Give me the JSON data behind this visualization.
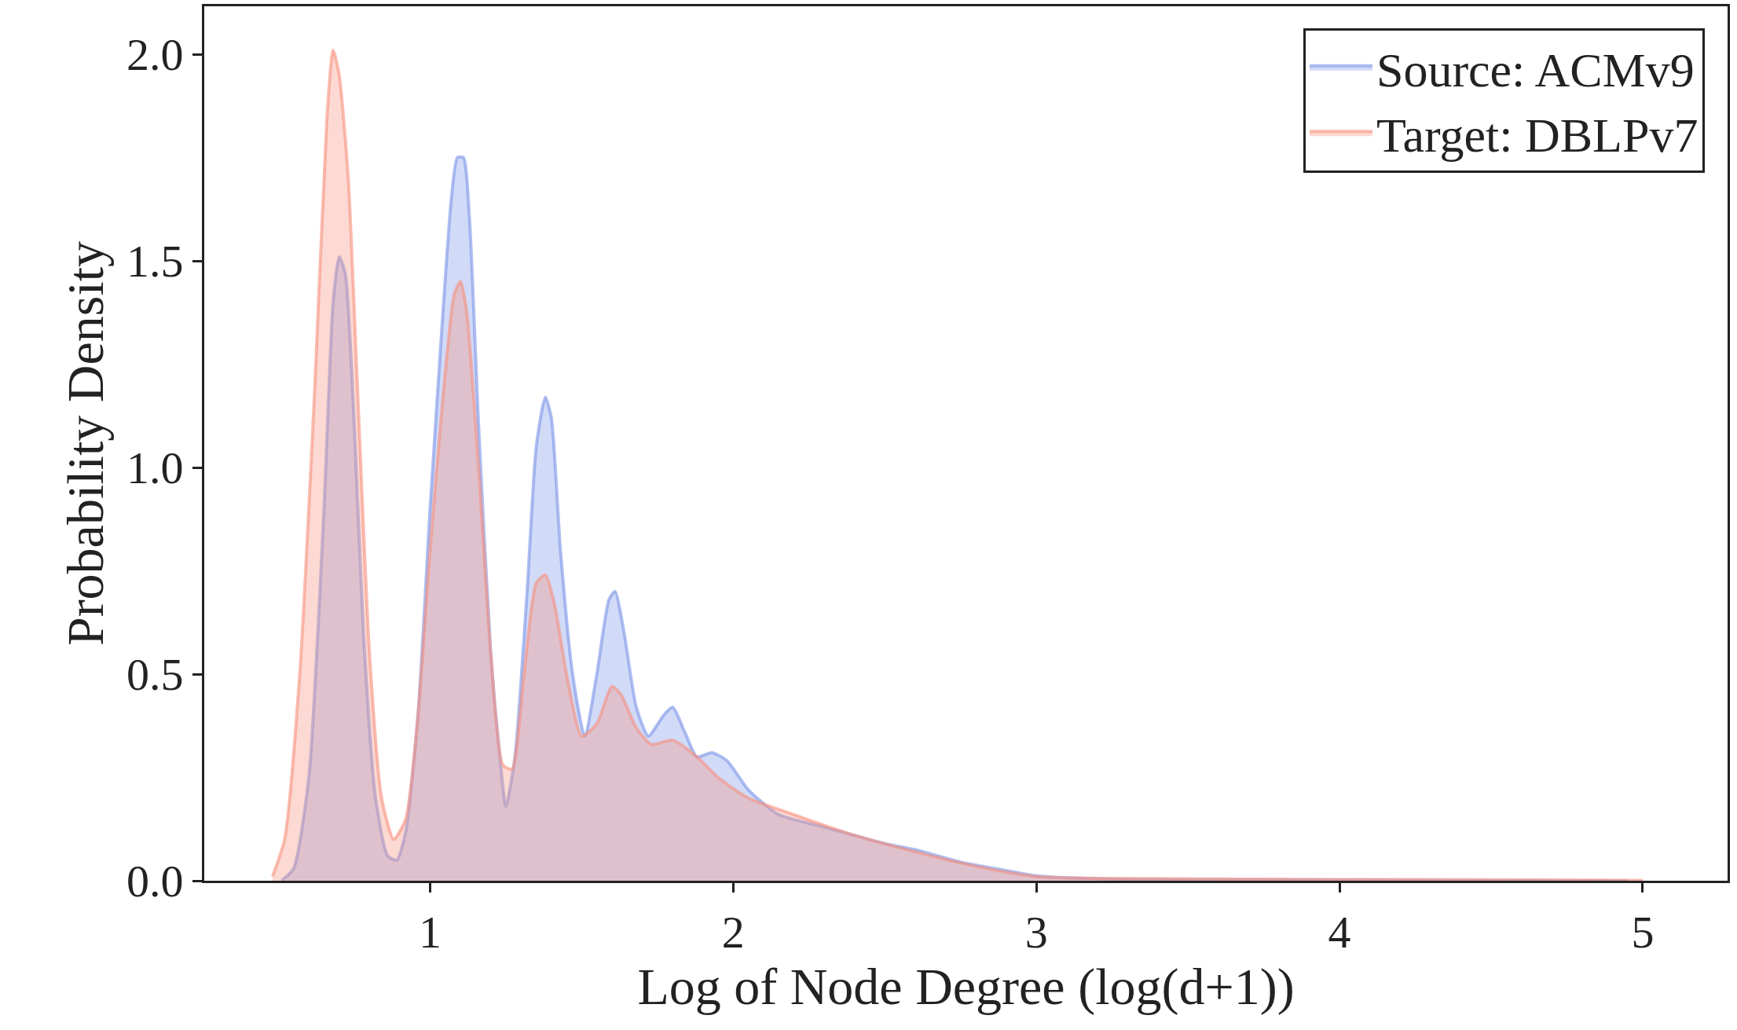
{
  "chart_data": {
    "type": "area",
    "xlabel": "Log of Node Degree (log(d+1))",
    "ylabel": "Probability Density",
    "xlim": [
      0.255,
      5.28
    ],
    "ylim": [
      0,
      2.116
    ],
    "xticks": [
      1,
      2,
      3,
      4,
      5
    ],
    "yticks": [
      {
        "value": 0,
        "label": "0.0"
      },
      0.5,
      {
        "value": 1,
        "label": "1.0"
      },
      1.5,
      {
        "value": 2,
        "label": "2.0"
      }
    ],
    "legend": "top right",
    "series": [
      {
        "name": "Source: ACMv9",
        "color": "#7b95e8",
        "x": [
          0.51,
          0.55,
          0.6,
          0.65,
          0.68,
          0.7,
          0.72,
          0.75,
          0.78,
          0.82,
          0.86,
          0.89,
          0.92,
          0.96,
          1.0,
          1.04,
          1.07,
          1.09,
          1.11,
          1.13,
          1.16,
          1.2,
          1.23,
          1.25,
          1.28,
          1.32,
          1.35,
          1.38,
          1.4,
          1.43,
          1.47,
          1.51,
          1.55,
          1.59,
          1.61,
          1.64,
          1.68,
          1.72,
          1.77,
          1.8,
          1.84,
          1.88,
          1.93,
          1.98,
          2.05,
          2.15,
          2.3,
          2.5,
          2.6,
          2.75,
          2.9,
          3.0,
          3.2,
          3.5,
          4.0,
          4.5,
          4.95
        ],
        "values": [
          0,
          0.03,
          0.25,
          0.9,
          1.4,
          1.51,
          1.47,
          1.1,
          0.6,
          0.2,
          0.06,
          0.05,
          0.12,
          0.4,
          0.9,
          1.35,
          1.65,
          1.75,
          1.75,
          1.6,
          1.1,
          0.55,
          0.3,
          0.18,
          0.3,
          0.7,
          1.05,
          1.17,
          1.12,
          0.8,
          0.5,
          0.35,
          0.5,
          0.68,
          0.7,
          0.6,
          0.42,
          0.35,
          0.4,
          0.42,
          0.36,
          0.3,
          0.31,
          0.29,
          0.22,
          0.16,
          0.13,
          0.09,
          0.075,
          0.045,
          0.025,
          0.012,
          0.005,
          0.003,
          0.002,
          0.001,
          0
        ]
      },
      {
        "name": "Target: DBLPv7",
        "color": "#f7917f",
        "x": [
          0.48,
          0.52,
          0.57,
          0.62,
          0.66,
          0.68,
          0.7,
          0.73,
          0.76,
          0.8,
          0.84,
          0.88,
          0.92,
          0.96,
          1.0,
          1.04,
          1.08,
          1.1,
          1.12,
          1.16,
          1.2,
          1.24,
          1.27,
          1.31,
          1.35,
          1.38,
          1.41,
          1.45,
          1.5,
          1.55,
          1.6,
          1.63,
          1.68,
          1.73,
          1.8,
          1.88,
          1.95,
          2.05,
          2.2,
          2.4,
          2.6,
          2.8,
          3.0,
          3.3,
          4.0,
          5.0
        ],
        "values": [
          0.01,
          0.1,
          0.5,
          1.2,
          1.85,
          2.01,
          1.95,
          1.7,
          1.2,
          0.55,
          0.2,
          0.1,
          0.15,
          0.4,
          0.8,
          1.15,
          1.42,
          1.45,
          1.38,
          1.0,
          0.55,
          0.28,
          0.27,
          0.5,
          0.72,
          0.74,
          0.67,
          0.5,
          0.35,
          0.38,
          0.47,
          0.45,
          0.37,
          0.33,
          0.34,
          0.3,
          0.25,
          0.2,
          0.16,
          0.11,
          0.07,
          0.035,
          0.01,
          0.005,
          0.003,
          0.001
        ]
      }
    ]
  }
}
